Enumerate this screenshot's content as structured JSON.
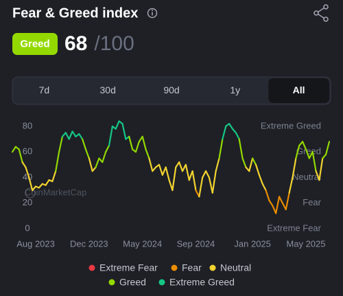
{
  "header": {
    "title": "Fear & Greed index",
    "status": "Greed",
    "value": 68,
    "max_label": "/100"
  },
  "tabs": {
    "items": [
      "7d",
      "30d",
      "90d",
      "1y",
      "All"
    ],
    "selected": "All"
  },
  "watermark": "CoinMarketCap",
  "chart_data": {
    "type": "line",
    "categories": [
      null,
      null,
      null,
      null,
      null,
      null,
      null,
      "Aug 2023",
      null,
      null,
      null,
      null,
      null,
      null,
      null,
      null,
      null,
      null,
      null,
      null,
      null,
      null,
      null,
      "Dec 2023",
      null,
      null,
      null,
      null,
      null,
      null,
      null,
      null,
      null,
      null,
      null,
      null,
      null,
      null,
      null,
      "May 2024",
      null,
      null,
      null,
      null,
      null,
      null,
      null,
      null,
      null,
      null,
      null,
      null,
      null,
      null,
      null,
      "Sep 2024",
      null,
      null,
      null,
      null,
      null,
      null,
      null,
      null,
      null,
      null,
      null,
      null,
      null,
      null,
      null,
      null,
      "Jan 2025",
      null,
      null,
      null,
      null,
      null,
      null,
      null,
      null,
      null,
      null,
      null,
      null,
      null,
      null,
      null,
      "May 2025",
      null,
      null,
      null,
      null,
      null,
      null,
      null
    ],
    "values": [
      60,
      64,
      62,
      52,
      48,
      40,
      30,
      33,
      32,
      35,
      34,
      38,
      37,
      45,
      60,
      72,
      75,
      70,
      76,
      72,
      74,
      70,
      62,
      55,
      45,
      48,
      55,
      52,
      60,
      65,
      80,
      78,
      84,
      82,
      70,
      72,
      62,
      60,
      68,
      72,
      62,
      55,
      45,
      48,
      50,
      42,
      48,
      38,
      30,
      48,
      52,
      45,
      50,
      38,
      45,
      30,
      25,
      40,
      45,
      40,
      28,
      45,
      55,
      70,
      80,
      82,
      78,
      75,
      70,
      55,
      48,
      45,
      55,
      50,
      42,
      35,
      30,
      22,
      18,
      12,
      25,
      20,
      15,
      28,
      40,
      55,
      65,
      68,
      62,
      55,
      60,
      45,
      38,
      55,
      58,
      68
    ],
    "ylim": [
      0,
      88
    ],
    "yticks": [
      0,
      20,
      40,
      60,
      80
    ],
    "grid": false,
    "zones": [
      {
        "name": "Extreme Fear",
        "color": "#ea3943",
        "level": 0
      },
      {
        "name": "Fear",
        "color": "#ea8c00",
        "level": 20
      },
      {
        "name": "Neutral",
        "color": "#f3d42f",
        "level": 40
      },
      {
        "name": "Greed",
        "color": "#93d900",
        "level": 60
      },
      {
        "name": "Extreme Greed",
        "color": "#16c784",
        "level": 80
      }
    ]
  }
}
